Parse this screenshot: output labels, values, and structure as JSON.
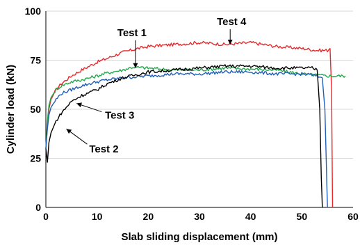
{
  "chart_data": {
    "type": "line",
    "xlabel": "Slab sliding displacement (mm)",
    "ylabel": "Cylinder load (kN)",
    "xlim": [
      0,
      60
    ],
    "ylim": [
      0,
      100
    ],
    "x_ticks": [
      "0",
      "10",
      "20",
      "30",
      "40",
      "50",
      "60"
    ],
    "y_ticks": [
      "0",
      "25",
      "50",
      "75",
      "100"
    ],
    "grid": "horizontal",
    "legend": "none",
    "annotations": [
      {
        "label": "Test 1",
        "x": 17.5,
        "y": 71
      },
      {
        "label": "Test 4",
        "x": 36,
        "y": 83
      },
      {
        "label": "Test 3",
        "x": 6,
        "y": 53
      },
      {
        "label": "Test 2",
        "x": 4,
        "y": 40
      }
    ],
    "series": [
      {
        "color": "#e8282b",
        "x": [
          0,
          0.3,
          0.6,
          1,
          2,
          3,
          5,
          7,
          10,
          12,
          15,
          18,
          20,
          25,
          30,
          35,
          40,
          45,
          50,
          53,
          55,
          55.5,
          55.8,
          56
        ],
        "y": [
          30,
          43,
          50,
          55,
          60,
          63,
          67,
          70,
          74,
          76,
          79,
          81,
          82,
          83,
          84,
          83,
          84,
          82,
          81,
          80,
          80,
          81,
          60,
          0
        ]
      },
      {
        "color": "#22a84a",
        "x": [
          0,
          0.3,
          0.6,
          1,
          2,
          3,
          5,
          7,
          10,
          12,
          15,
          17,
          20,
          25,
          30,
          35,
          40,
          45,
          50,
          55,
          58.5
        ],
        "y": [
          30,
          44,
          52,
          56,
          60,
          62,
          64,
          65,
          67,
          68.5,
          70,
          71.5,
          71,
          70,
          70,
          71,
          70.5,
          70,
          68,
          67,
          67
        ]
      },
      {
        "color": "#1f5fb8",
        "x": [
          0,
          0.3,
          0.6,
          1,
          2,
          3,
          5,
          7,
          10,
          12,
          15,
          20,
          25,
          30,
          35,
          40,
          45,
          50,
          53,
          54,
          54.5,
          54.8,
          55
        ],
        "y": [
          30,
          40,
          47,
          51,
          55,
          58,
          60,
          62,
          64,
          65,
          66,
          67,
          68,
          68,
          69,
          69,
          68,
          68,
          67,
          66,
          50,
          20,
          0
        ]
      },
      {
        "color": "#000000",
        "x": [
          0,
          0.3,
          0.6,
          1,
          2,
          3,
          5,
          7,
          10,
          12,
          15,
          20,
          25,
          30,
          35,
          40,
          45,
          50,
          52,
          53,
          53.5,
          53.8,
          54
        ],
        "y": [
          30,
          23,
          33,
          38,
          44,
          48,
          54,
          57,
          60,
          63,
          66,
          69,
          70,
          71,
          72,
          72,
          71,
          71,
          71,
          70,
          50,
          15,
          0
        ]
      }
    ]
  }
}
